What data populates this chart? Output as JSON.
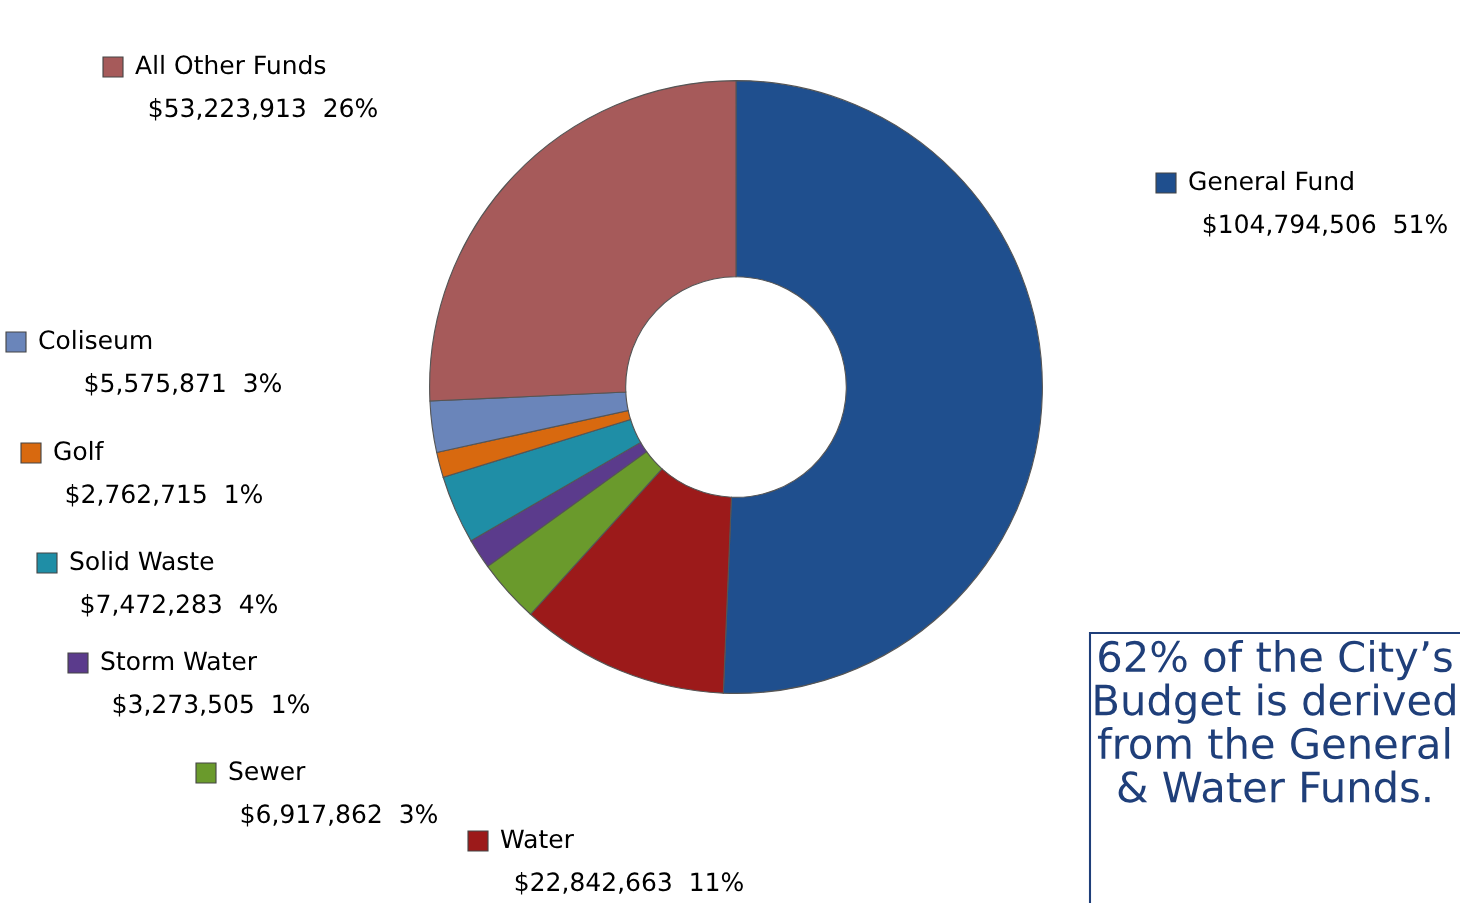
{
  "chart_data": {
    "type": "donut",
    "categories": [
      "General Fund",
      "Water",
      "Sewer",
      "Storm Water",
      "Solid Waste",
      "Golf",
      "Coliseum",
      "All Other Funds"
    ],
    "values": [
      104794506,
      22842663,
      6917862,
      3273505,
      7472283,
      2762715,
      5575871,
      53223913
    ],
    "value_labels": [
      "$104,794,506  51%",
      "$22,842,663  11%",
      "$6,917,862  3%",
      "$3,273,505  1%",
      "$7,472,283  4%",
      "$2,762,715  1%",
      "$5,575,871  3%",
      "$53,223,913  26%"
    ],
    "colors": [
      "#1f4f8e",
      "#9c1a1a",
      "#6a9a2c",
      "#5b3b8c",
      "#1f8ea6",
      "#d8690f",
      "#6a85ba",
      "#a65a5a"
    ],
    "legend": "left",
    "annotations": [
      "62% of the City’s Budget is derived from the General & Water Funds."
    ]
  }
}
